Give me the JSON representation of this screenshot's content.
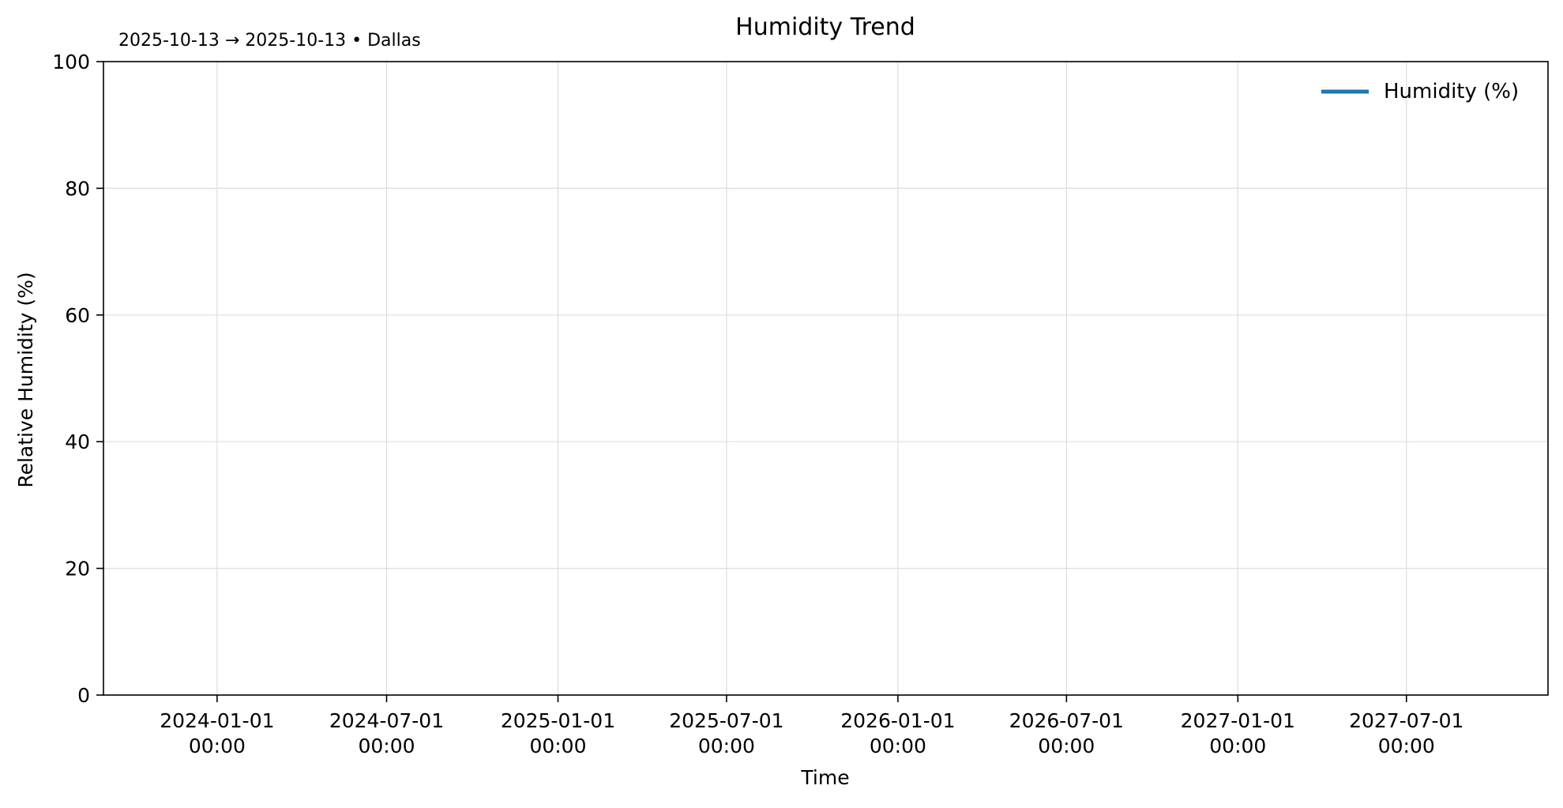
{
  "chart_data": {
    "type": "line",
    "title": "Humidity Trend",
    "subtitle": "2025-10-13 → 2025-10-13 • Dallas",
    "xlabel": "Time",
    "ylabel": "Relative Humidity (%)",
    "ylim": [
      0,
      100
    ],
    "xlim": [
      "2023-09-01",
      "2027-11-30"
    ],
    "x_ticks": [
      {
        "date": "2024-01-01",
        "line1": "2024-01-01",
        "line2": "00:00"
      },
      {
        "date": "2024-07-01",
        "line1": "2024-07-01",
        "line2": "00:00"
      },
      {
        "date": "2025-01-01",
        "line1": "2025-01-01",
        "line2": "00:00"
      },
      {
        "date": "2025-07-01",
        "line1": "2025-07-01",
        "line2": "00:00"
      },
      {
        "date": "2026-01-01",
        "line1": "2026-01-01",
        "line2": "00:00"
      },
      {
        "date": "2026-07-01",
        "line1": "2026-07-01",
        "line2": "00:00"
      },
      {
        "date": "2027-01-01",
        "line1": "2027-01-01",
        "line2": "00:00"
      },
      {
        "date": "2027-07-01",
        "line1": "2027-07-01",
        "line2": "00:00"
      }
    ],
    "y_ticks": [
      0,
      20,
      40,
      60,
      80,
      100
    ],
    "grid": true,
    "legend_position": "top-right",
    "series": [
      {
        "name": "Humidity (%)",
        "color": "#1f77b4",
        "points": []
      }
    ]
  }
}
